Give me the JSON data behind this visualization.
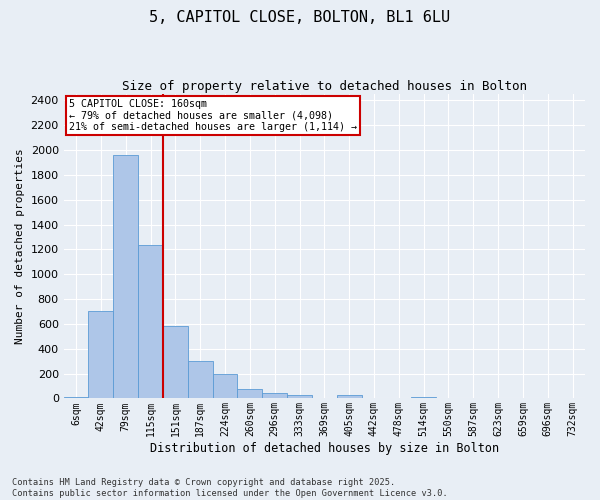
{
  "title1": "5, CAPITOL CLOSE, BOLTON, BL1 6LU",
  "title2": "Size of property relative to detached houses in Bolton",
  "xlabel": "Distribution of detached houses by size in Bolton",
  "ylabel": "Number of detached properties",
  "bin_labels": [
    "6sqm",
    "42sqm",
    "79sqm",
    "115sqm",
    "151sqm",
    "187sqm",
    "224sqm",
    "260sqm",
    "296sqm",
    "333sqm",
    "369sqm",
    "405sqm",
    "442sqm",
    "478sqm",
    "514sqm",
    "550sqm",
    "587sqm",
    "623sqm",
    "659sqm",
    "696sqm",
    "732sqm"
  ],
  "bar_heights": [
    15,
    700,
    1960,
    1235,
    580,
    305,
    200,
    75,
    40,
    28,
    5,
    28,
    5,
    5,
    14,
    5,
    5,
    5,
    5,
    5,
    5
  ],
  "bar_color": "#aec6e8",
  "bar_edge_color": "#5b9bd5",
  "red_line_bin": 4,
  "annotation_text_line1": "5 CAPITOL CLOSE: 160sqm",
  "annotation_text_line2": "← 79% of detached houses are smaller (4,098)",
  "annotation_text_line3": "21% of semi-detached houses are larger (1,114) →",
  "annotation_box_color": "#ffffff",
  "annotation_box_edge": "#cc0000",
  "red_line_color": "#cc0000",
  "ylim": [
    0,
    2450
  ],
  "yticks": [
    0,
    200,
    400,
    600,
    800,
    1000,
    1200,
    1400,
    1600,
    1800,
    2000,
    2200,
    2400
  ],
  "background_color": "#e8eef5",
  "grid_color": "#ffffff",
  "footer1": "Contains HM Land Registry data © Crown copyright and database right 2025.",
  "footer2": "Contains public sector information licensed under the Open Government Licence v3.0."
}
